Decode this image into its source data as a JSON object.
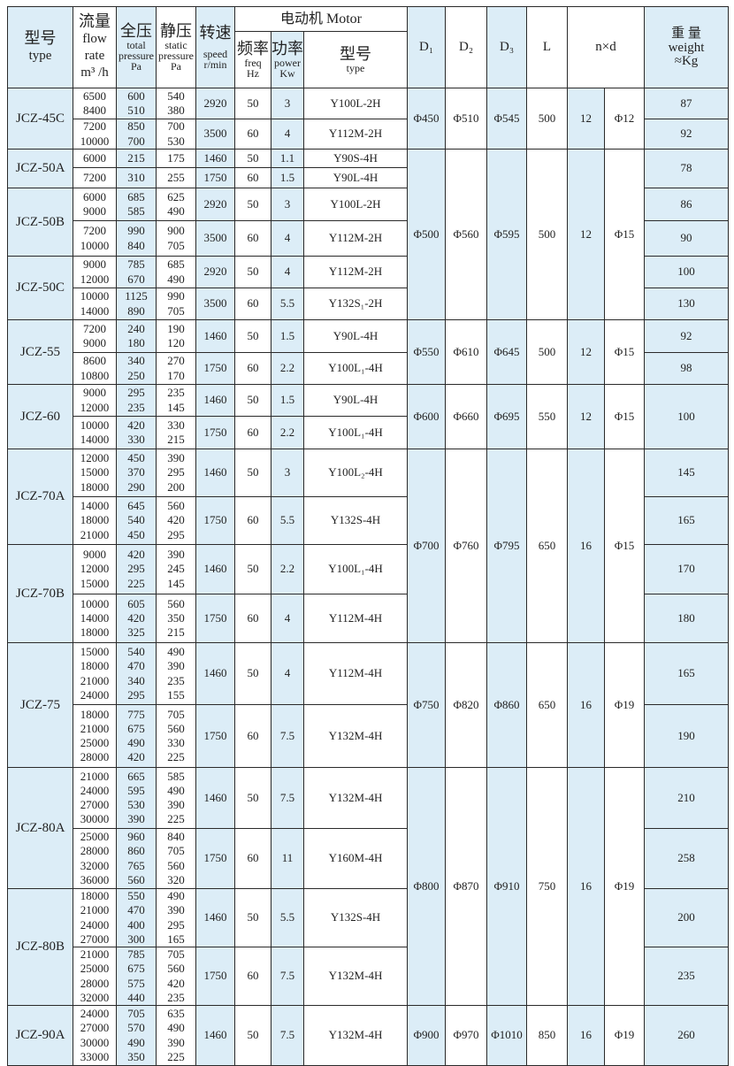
{
  "header": {
    "type_cn": "型号",
    "type_en": "type",
    "flow_cn": "流量",
    "flow_en": "flow rate",
    "flow_unit": "m³ /h",
    "total_cn": "全压",
    "total_en": "total pressure",
    "total_unit": "Pa",
    "static_cn": "静压",
    "static_en": "static pressure",
    "static_unit": "Pa",
    "speed_cn": "转速",
    "speed_en": "speed",
    "speed_unit": "r/min",
    "motor": "电动机 Motor",
    "freq_cn": "频率",
    "freq_en": "freq",
    "freq_unit": "Hz",
    "power_cn": "功率",
    "power_en": "power",
    "power_unit": "Kw",
    "model_cn": "型号",
    "model_en": "type",
    "d1": "D₁",
    "d2": "D₂",
    "d3": "D₃",
    "l": "L",
    "nd": "n×d",
    "weight_cn": "重 量",
    "weight_en": "weight",
    "weight_unit": "≈Kg"
  },
  "models": [
    {
      "type": "JCZ-45C",
      "weights": [
        "87",
        "92"
      ],
      "rows": [
        {
          "flow": "6500\n8400",
          "total": "600\n510",
          "static": "540\n380",
          "speed": "2920",
          "freq": "50",
          "power": "3",
          "model": "Y100L-2H"
        },
        {
          "flow": "7200\n10000",
          "total": "850\n700",
          "static": "700\n530",
          "speed": "3500",
          "freq": "60",
          "power": "4",
          "model": "Y112M-2H"
        }
      ]
    },
    {
      "type": "JCZ-50A",
      "weights": [
        "78"
      ],
      "rows": [
        {
          "flow": "6000",
          "total": "215",
          "static": "175",
          "speed": "1460",
          "freq": "50",
          "power": "1.1",
          "model": "Y90S-4H"
        },
        {
          "flow": "7200",
          "total": "310",
          "static": "255",
          "speed": "1750",
          "freq": "60",
          "power": "1.5",
          "model": "Y90L-4H"
        }
      ]
    },
    {
      "type": "JCZ-50B",
      "weights": [
        "86",
        "90"
      ],
      "rows": [
        {
          "flow": "6000\n9000",
          "total": "685\n585",
          "static": "625\n490",
          "speed": "2920",
          "freq": "50",
          "power": "3",
          "model": "Y100L-2H"
        },
        {
          "flow": "7200\n10000",
          "total": "990\n840",
          "static": "900\n705",
          "speed": "3500",
          "freq": "60",
          "power": "4",
          "model": "Y112M-2H"
        }
      ]
    },
    {
      "type": "JCZ-50C",
      "weights": [
        "100",
        "130"
      ],
      "rows": [
        {
          "flow": "9000\n12000",
          "total": "785\n670",
          "static": "685\n490",
          "speed": "2920",
          "freq": "50",
          "power": "4",
          "model": "Y112M-2H"
        },
        {
          "flow": "10000\n14000",
          "total": "1125\n890",
          "static": "990\n705",
          "speed": "3500",
          "freq": "60",
          "power": "5.5",
          "model": "Y132S₁-2H"
        }
      ]
    },
    {
      "type": "JCZ-55",
      "weights": [
        "92",
        "98"
      ],
      "rows": [
        {
          "flow": "7200\n9000",
          "total": "240\n180",
          "static": "190\n120",
          "speed": "1460",
          "freq": "50",
          "power": "1.5",
          "model": "Y90L-4H"
        },
        {
          "flow": "8600\n10800",
          "total": "340\n250",
          "static": "270\n170",
          "speed": "1750",
          "freq": "60",
          "power": "2.2",
          "model": "Y100L₁-4H"
        }
      ]
    },
    {
      "type": "JCZ-60",
      "weights": [
        "100"
      ],
      "rows": [
        {
          "flow": "9000\n12000",
          "total": "295\n235",
          "static": "235\n145",
          "speed": "1460",
          "freq": "50",
          "power": "1.5",
          "model": "Y90L-4H"
        },
        {
          "flow": "10000\n14000",
          "total": "420\n330",
          "static": "330\n215",
          "speed": "1750",
          "freq": "60",
          "power": "2.2",
          "model": "Y100L₁-4H"
        }
      ]
    },
    {
      "type": "JCZ-70A",
      "weights": [
        "145",
        "165"
      ],
      "rows": [
        {
          "flow": "12000\n15000\n18000",
          "total": "450\n370\n290",
          "static": "390\n295\n200",
          "speed": "1460",
          "freq": "50",
          "power": "3",
          "model": "Y100L₂-4H"
        },
        {
          "flow": "14000\n18000\n21000",
          "total": "645\n540\n450",
          "static": "560\n420\n295",
          "speed": "1750",
          "freq": "60",
          "power": "5.5",
          "model": "Y132S-4H"
        }
      ]
    },
    {
      "type": "JCZ-70B",
      "weights": [
        "170",
        "180"
      ],
      "rows": [
        {
          "flow": "9000\n12000\n15000",
          "total": "420\n295\n225",
          "static": "390\n245\n145",
          "speed": "1460",
          "freq": "50",
          "power": "2.2",
          "model": "Y100L₁-4H"
        },
        {
          "flow": "10000\n14000\n18000",
          "total": "605\n420\n325",
          "static": "560\n350\n215",
          "speed": "1750",
          "freq": "60",
          "power": "4",
          "model": "Y112M-4H"
        }
      ]
    },
    {
      "type": "JCZ-75",
      "weights": [
        "165",
        "190"
      ],
      "rows": [
        {
          "flow": "15000\n18000\n21000\n24000",
          "total": "540\n470\n340\n295",
          "static": "490\n390\n235\n155",
          "speed": "1460",
          "freq": "50",
          "power": "4",
          "model": "Y112M-4H"
        },
        {
          "flow": "18000\n21000\n25000\n28000",
          "total": "775\n675\n490\n420",
          "static": "705\n560\n330\n225",
          "speed": "1750",
          "freq": "60",
          "power": "7.5",
          "model": "Y132M-4H"
        }
      ]
    },
    {
      "type": "JCZ-80A",
      "weights": [
        "210",
        "258"
      ],
      "rows": [
        {
          "flow": "21000\n24000\n27000\n30000",
          "total": "665\n595\n530\n390",
          "static": "585\n490\n390\n225",
          "speed": "1460",
          "freq": "50",
          "power": "7.5",
          "model": "Y132M-4H"
        },
        {
          "flow": "25000\n28000\n32000\n36000",
          "total": "960\n860\n765\n560",
          "static": "840\n705\n560\n320",
          "speed": "1750",
          "freq": "60",
          "power": "11",
          "model": "Y160M-4H"
        }
      ]
    },
    {
      "type": "JCZ-80B",
      "weights": [
        "200",
        "235"
      ],
      "rows": [
        {
          "flow": "18000\n21000\n24000\n27000",
          "total": "550\n470\n400\n300",
          "static": "490\n390\n295\n165",
          "speed": "1460",
          "freq": "50",
          "power": "5.5",
          "model": "Y132S-4H"
        },
        {
          "flow": "21000\n25000\n28000\n32000",
          "total": "785\n675\n575\n440",
          "static": "705\n560\n420\n235",
          "speed": "1750",
          "freq": "60",
          "power": "7.5",
          "model": "Y132M-4H"
        }
      ]
    },
    {
      "type": "JCZ-90A",
      "weights": [
        "260"
      ],
      "rows": [
        {
          "flow": "24000\n27000\n30000\n33000",
          "total": "705\n570\n490\n350",
          "static": "635\n490\n390\n225",
          "speed": "1460",
          "freq": "50",
          "power": "7.5",
          "model": "Y132M-4H"
        }
      ]
    }
  ],
  "dimensions": [
    {
      "models": [
        "JCZ-45C"
      ],
      "d1": "Φ450",
      "d2": "Φ510",
      "d3": "Φ545",
      "l": "500",
      "n": "12",
      "d": "Φ12"
    },
    {
      "models": [
        "JCZ-50A",
        "JCZ-50B",
        "JCZ-50C"
      ],
      "d1": "Φ500",
      "d2": "Φ560",
      "d3": "Φ595",
      "l": "500",
      "n": "12",
      "d": "Φ15"
    },
    {
      "models": [
        "JCZ-55"
      ],
      "d1": "Φ550",
      "d2": "Φ610",
      "d3": "Φ645",
      "l": "500",
      "n": "12",
      "d": "Φ15"
    },
    {
      "models": [
        "JCZ-60"
      ],
      "d1": "Φ600",
      "d2": "Φ660",
      "d3": "Φ695",
      "l": "550",
      "n": "12",
      "d": "Φ15"
    },
    {
      "models": [
        "JCZ-70A",
        "JCZ-70B"
      ],
      "d1": "Φ700",
      "d2": "Φ760",
      "d3": "Φ795",
      "l": "650",
      "n": "16",
      "d": "Φ15"
    },
    {
      "models": [
        "JCZ-75"
      ],
      "d1": "Φ750",
      "d2": "Φ820",
      "d3": "Φ860",
      "l": "650",
      "n": "16",
      "d": "Φ19"
    },
    {
      "models": [
        "JCZ-80A",
        "JCZ-80B"
      ],
      "d1": "Φ800",
      "d2": "Φ870",
      "d3": "Φ910",
      "l": "750",
      "n": "16",
      "d": "Φ19"
    },
    {
      "models": [
        "JCZ-90A"
      ],
      "d1": "Φ900",
      "d2": "Φ970",
      "d3": "Φ1010",
      "l": "850",
      "n": "16",
      "d": "Φ19"
    }
  ],
  "colors": {
    "highlight": "#dcedf7",
    "border": "#2a2a2a"
  }
}
